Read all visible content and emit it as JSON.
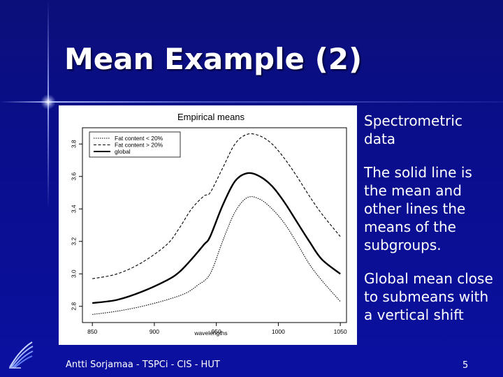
{
  "slide": {
    "title": "Mean Example (2)",
    "footer": "Antti Sorjamaa - TSPCi - CIS - HUT",
    "page_number": "5",
    "bullets": [
      "Spectrometric data",
      "The solid line is the mean and other lines the means of the subgroups.",
      "Global mean close to submeans with a vertical shift"
    ],
    "logo_icon": "wing-logo-icon"
  },
  "chart_data": {
    "type": "line",
    "title": "Empirical means",
    "xlabel": "wavelengths",
    "ylabel": "",
    "xlim": [
      842,
      1055
    ],
    "ylim": [
      2.7,
      3.9
    ],
    "xticks": [
      850,
      900,
      950,
      1000,
      1050
    ],
    "yticks": [
      2.8,
      3.0,
      3.2,
      3.4,
      3.6,
      3.8
    ],
    "legend_position": "top-left",
    "series": [
      {
        "name": "Fat content < 20%",
        "style": "dotted",
        "x": [
          850,
          870,
          890,
          910,
          925,
          935,
          945,
          955,
          965,
          975,
          985,
          995,
          1005,
          1015,
          1025,
          1035,
          1050
        ],
        "y": [
          2.75,
          2.77,
          2.8,
          2.84,
          2.88,
          2.93,
          3.0,
          3.2,
          3.38,
          3.47,
          3.46,
          3.4,
          3.31,
          3.19,
          3.06,
          2.96,
          2.83
        ]
      },
      {
        "name": "Fat content > 20%",
        "style": "dashed",
        "x": [
          850,
          870,
          890,
          910,
          920,
          930,
          940,
          945,
          955,
          965,
          975,
          985,
          995,
          1005,
          1015,
          1025,
          1035,
          1050
        ],
        "y": [
          2.97,
          3.0,
          3.07,
          3.18,
          3.28,
          3.4,
          3.48,
          3.5,
          3.65,
          3.8,
          3.86,
          3.85,
          3.8,
          3.71,
          3.6,
          3.48,
          3.37,
          3.23
        ]
      },
      {
        "name": "global",
        "style": "solid",
        "x": [
          850,
          870,
          890,
          910,
          920,
          930,
          940,
          945,
          955,
          965,
          975,
          985,
          995,
          1005,
          1015,
          1025,
          1035,
          1050
        ],
        "y": [
          2.82,
          2.84,
          2.89,
          2.96,
          3.01,
          3.09,
          3.18,
          3.23,
          3.42,
          3.57,
          3.62,
          3.6,
          3.54,
          3.44,
          3.32,
          3.2,
          3.09,
          3.0
        ]
      }
    ]
  }
}
